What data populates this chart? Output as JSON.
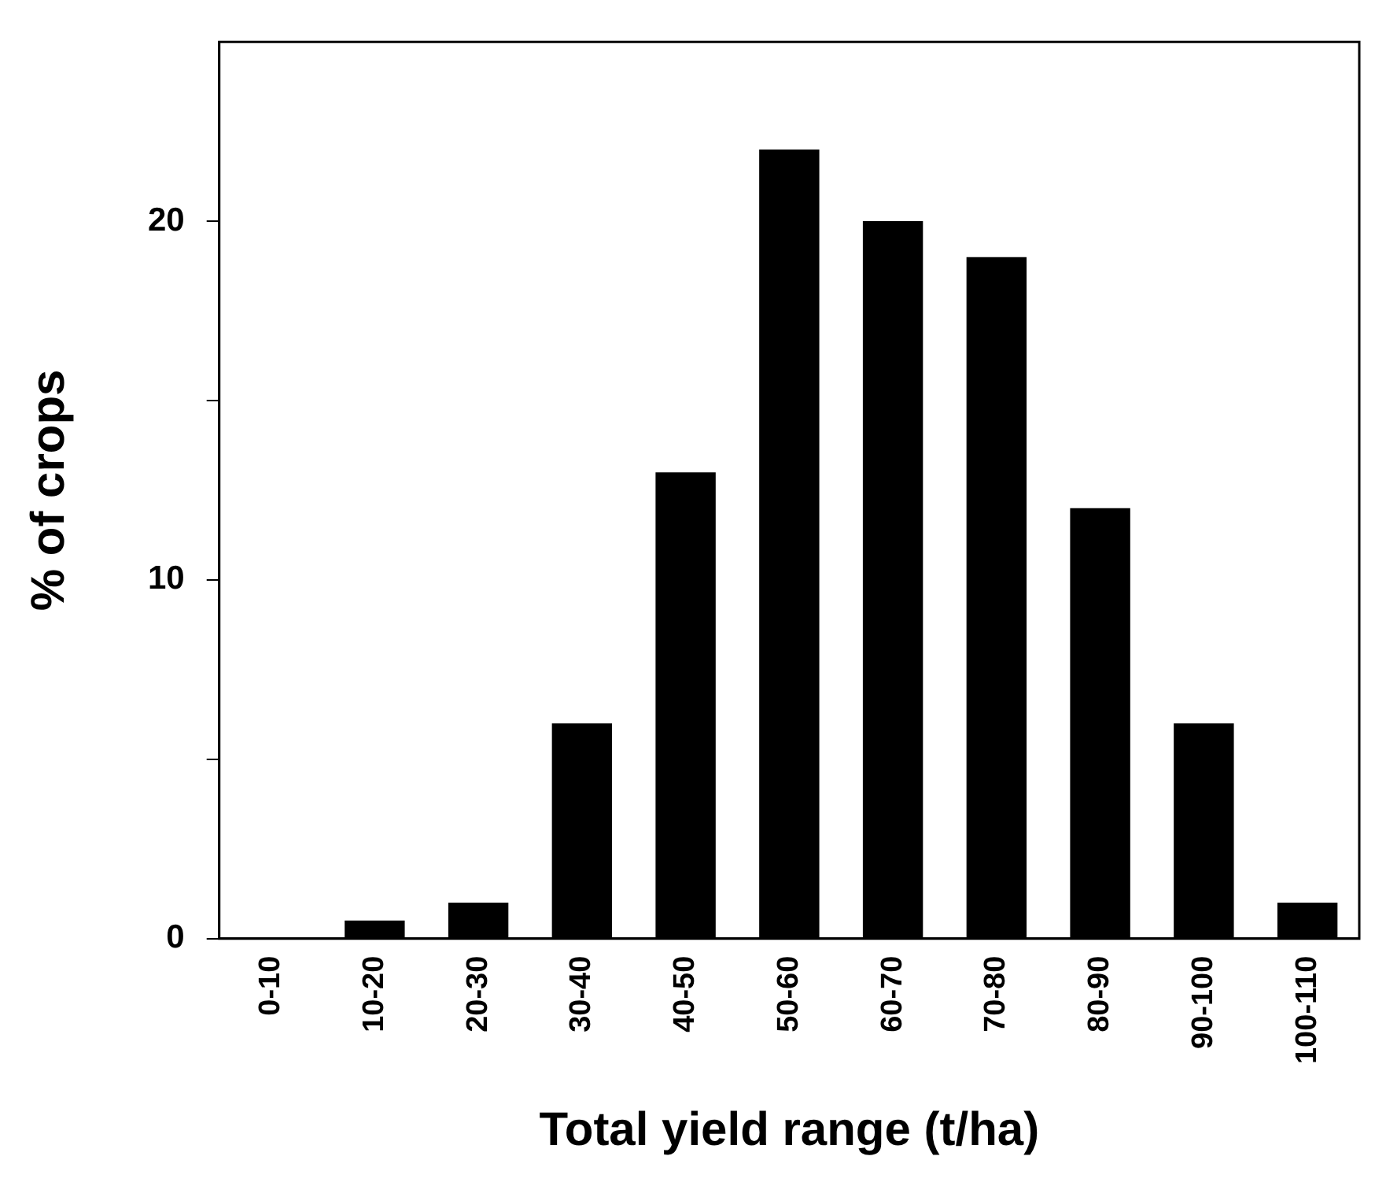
{
  "chart_data": {
    "type": "bar",
    "xlabel": "Total yield range (t/ha)",
    "ylabel": "% of crops",
    "categories": [
      "0-10",
      "10-20",
      "20-30",
      "30-40",
      "40-50",
      "50-60",
      "60-70",
      "70-80",
      "80-90",
      "90-100",
      "100-110"
    ],
    "values": [
      0,
      0.5,
      1,
      6,
      13,
      22,
      20,
      19,
      12,
      6,
      1
    ],
    "color": "#000000",
    "ylim": [
      0,
      25
    ],
    "yticks": [
      0,
      {
        "value": 5,
        "label": null
      },
      10,
      {
        "value": 15,
        "label": null
      },
      20
    ],
    "grid": false,
    "legend": false
  }
}
